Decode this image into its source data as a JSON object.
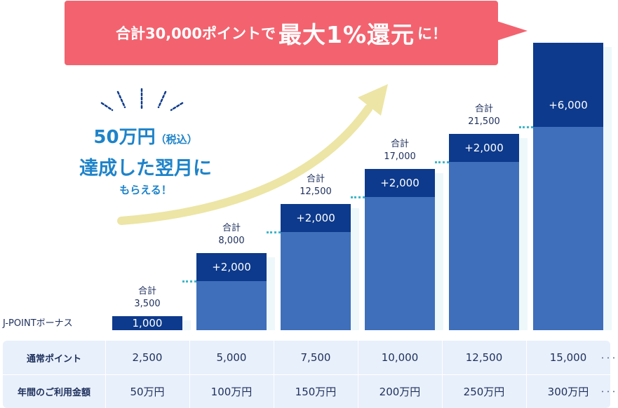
{
  "banner": {
    "text_prefix": "合計30,000ポイントで",
    "text_big": "最大1%還元",
    "text_suffix": "に！"
  },
  "message": {
    "line1_main": "50万円",
    "line1_small": "（税込）",
    "line2": "達成した翌月に",
    "line3": "もらえる！"
  },
  "bonus_row_label": "J-POINTボーナス",
  "colors": {
    "banner": "#f2636f",
    "bar_bonus": "#0d3a8c",
    "bar_base": "#3f6fba",
    "message": "#1e83c9",
    "arrow": "#ece5a5",
    "table_bg": "#e8f0fb"
  },
  "chart_data": {
    "type": "bar",
    "categories": [
      "50万円",
      "100万円",
      "150万円",
      "200万円",
      "250万円",
      "300万円"
    ],
    "series": [
      {
        "name": "通常ポイント",
        "values": [
          2500,
          5000,
          7500,
          10000,
          12500,
          15000
        ]
      },
      {
        "name": "J-POINTボーナス",
        "values": [
          1000,
          2000,
          2000,
          2000,
          2000,
          6000
        ]
      }
    ],
    "bonus_labels": [
      "1,000",
      "+2,000",
      "+2,000",
      "+2,000",
      "+2,000",
      "+6,000"
    ],
    "total_label": "合計",
    "totals": [
      "3,500",
      "8,000",
      "12,500",
      "17,000",
      "21,500",
      ""
    ]
  },
  "table": {
    "rows": [
      {
        "label": "通常ポイント",
        "values": [
          "2,500",
          "5,000",
          "7,500",
          "10,000",
          "12,500",
          "15,000"
        ]
      },
      {
        "label": "年間のご利用金額",
        "values": [
          "50万円",
          "100万円",
          "150万円",
          "200万円",
          "250万円",
          "300万円"
        ]
      }
    ],
    "ellipsis": "･･･"
  }
}
